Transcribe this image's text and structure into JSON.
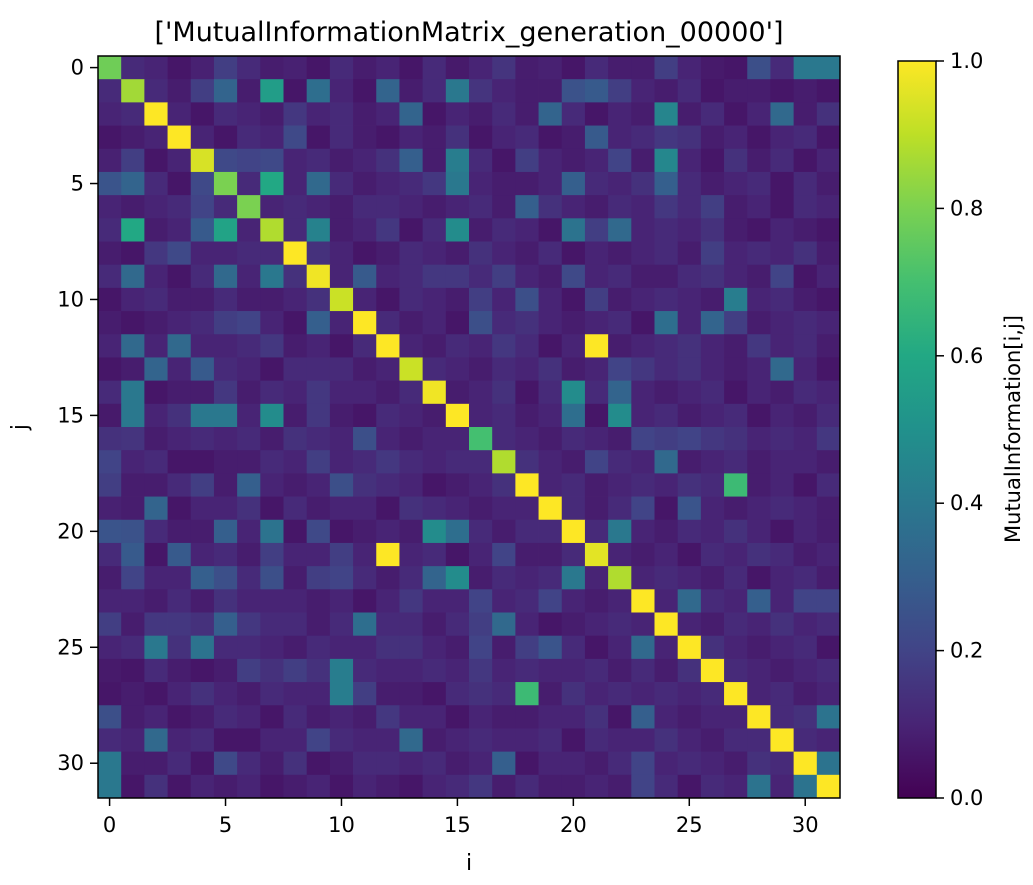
{
  "chart_data": {
    "type": "heatmap",
    "title": "['MutualInformationMatrix_generation_00000']",
    "xlabel": "i",
    "ylabel": "j",
    "colorbar_label": "MutualInformation[i,j]",
    "colormap": "viridis",
    "vmin": 0.0,
    "vmax": 1.0,
    "x_ticks": [
      0,
      5,
      10,
      15,
      20,
      25,
      30
    ],
    "y_ticks": [
      0,
      5,
      10,
      15,
      20,
      25,
      30
    ],
    "x_tick_labels": [
      "0",
      "5",
      "10",
      "15",
      "20",
      "25",
      "30"
    ],
    "y_tick_labels": [
      "0",
      "5",
      "10",
      "15",
      "20",
      "25",
      "30"
    ],
    "colorbar_ticks": [
      0.0,
      0.2,
      0.4,
      0.6,
      0.8,
      1.0
    ],
    "colorbar_tick_labels": [
      "0.0",
      "0.2",
      "0.4",
      "0.6",
      "0.8",
      "1.0"
    ],
    "size": 32,
    "grid": false,
    "legend": "none",
    "values_note": "Off-diagonal cells estimated; diagonal high (~0.85-1.0); notable symmetric peaks at (12,21)=1.0 and (18,27)=0.68",
    "matrix": [
      [
        0.78,
        0.12,
        0.1,
        0.06,
        0.09,
        0.18,
        0.12,
        0.08,
        0.09,
        0.06,
        0.12,
        0.08,
        0.1,
        0.06,
        0.12,
        0.07,
        0.1,
        0.15,
        0.08,
        0.09,
        0.06,
        0.12,
        0.08,
        0.08,
        0.18,
        0.1,
        0.07,
        0.06,
        0.24,
        0.12,
        0.4,
        0.4
      ],
      [
        0.12,
        0.86,
        0.12,
        0.08,
        0.18,
        0.32,
        0.08,
        0.55,
        0.06,
        0.36,
        0.1,
        0.06,
        0.32,
        0.08,
        0.12,
        0.4,
        0.15,
        0.1,
        0.08,
        0.08,
        0.25,
        0.28,
        0.18,
        0.1,
        0.08,
        0.12,
        0.06,
        0.08,
        0.08,
        0.06,
        0.08,
        0.06
      ],
      [
        0.1,
        0.12,
        1.0,
        0.1,
        0.06,
        0.12,
        0.1,
        0.08,
        0.16,
        0.1,
        0.12,
        0.08,
        0.1,
        0.32,
        0.06,
        0.1,
        0.08,
        0.12,
        0.08,
        0.32,
        0.12,
        0.06,
        0.1,
        0.08,
        0.45,
        0.08,
        0.12,
        0.06,
        0.1,
        0.34,
        0.08,
        0.14
      ],
      [
        0.06,
        0.08,
        0.1,
        1.0,
        0.1,
        0.06,
        0.12,
        0.1,
        0.22,
        0.06,
        0.12,
        0.08,
        0.06,
        0.1,
        0.08,
        0.14,
        0.06,
        0.1,
        0.12,
        0.06,
        0.08,
        0.28,
        0.1,
        0.12,
        0.16,
        0.14,
        0.08,
        0.1,
        0.06,
        0.1,
        0.12,
        0.06
      ],
      [
        0.09,
        0.18,
        0.06,
        0.1,
        0.94,
        0.22,
        0.2,
        0.22,
        0.1,
        0.12,
        0.08,
        0.1,
        0.14,
        0.3,
        0.08,
        0.42,
        0.12,
        0.06,
        0.18,
        0.1,
        0.08,
        0.1,
        0.2,
        0.08,
        0.46,
        0.1,
        0.06,
        0.14,
        0.08,
        0.12,
        0.06,
        0.1
      ],
      [
        0.26,
        0.32,
        0.12,
        0.06,
        0.22,
        0.8,
        0.12,
        0.6,
        0.1,
        0.34,
        0.12,
        0.08,
        0.1,
        0.12,
        0.16,
        0.4,
        0.1,
        0.08,
        0.08,
        0.1,
        0.3,
        0.12,
        0.1,
        0.14,
        0.3,
        0.12,
        0.08,
        0.1,
        0.12,
        0.06,
        0.12,
        0.08
      ],
      [
        0.1,
        0.08,
        0.1,
        0.12,
        0.2,
        0.12,
        0.8,
        0.1,
        0.12,
        0.1,
        0.08,
        0.12,
        0.12,
        0.1,
        0.08,
        0.1,
        0.12,
        0.08,
        0.3,
        0.14,
        0.1,
        0.08,
        0.12,
        0.1,
        0.16,
        0.12,
        0.18,
        0.08,
        0.1,
        0.06,
        0.12,
        0.1
      ],
      [
        0.12,
        0.6,
        0.08,
        0.1,
        0.28,
        0.58,
        0.1,
        0.88,
        0.12,
        0.44,
        0.08,
        0.1,
        0.16,
        0.06,
        0.12,
        0.48,
        0.08,
        0.12,
        0.1,
        0.06,
        0.38,
        0.18,
        0.34,
        0.1,
        0.12,
        0.1,
        0.14,
        0.08,
        0.06,
        0.1,
        0.08,
        0.06
      ],
      [
        0.08,
        0.06,
        0.16,
        0.22,
        0.1,
        0.1,
        0.12,
        0.12,
        1.0,
        0.14,
        0.1,
        0.06,
        0.08,
        0.12,
        0.1,
        0.08,
        0.14,
        0.1,
        0.08,
        0.12,
        0.06,
        0.1,
        0.08,
        0.1,
        0.12,
        0.08,
        0.18,
        0.1,
        0.12,
        0.1,
        0.14,
        0.08
      ],
      [
        0.12,
        0.34,
        0.1,
        0.06,
        0.12,
        0.34,
        0.1,
        0.4,
        0.14,
        0.98,
        0.1,
        0.28,
        0.1,
        0.12,
        0.16,
        0.16,
        0.12,
        0.18,
        0.1,
        0.08,
        0.22,
        0.1,
        0.12,
        0.08,
        0.08,
        0.12,
        0.14,
        0.1,
        0.08,
        0.2,
        0.06,
        0.1
      ],
      [
        0.06,
        0.1,
        0.12,
        0.08,
        0.08,
        0.12,
        0.08,
        0.08,
        0.1,
        0.14,
        0.92,
        0.1,
        0.06,
        0.12,
        0.1,
        0.08,
        0.18,
        0.1,
        0.24,
        0.1,
        0.06,
        0.18,
        0.08,
        0.1,
        0.12,
        0.1,
        0.08,
        0.42,
        0.1,
        0.12,
        0.08,
        0.06
      ],
      [
        0.08,
        0.06,
        0.08,
        0.1,
        0.12,
        0.18,
        0.2,
        0.1,
        0.06,
        0.3,
        0.1,
        1.0,
        0.12,
        0.08,
        0.1,
        0.06,
        0.24,
        0.12,
        0.14,
        0.1,
        0.08,
        0.1,
        0.12,
        0.06,
        0.36,
        0.1,
        0.32,
        0.18,
        0.08,
        0.1,
        0.12,
        0.1
      ],
      [
        0.1,
        0.34,
        0.1,
        0.34,
        0.1,
        0.1,
        0.12,
        0.16,
        0.08,
        0.1,
        0.06,
        0.12,
        1.0,
        0.1,
        0.08,
        0.12,
        0.1,
        0.16,
        0.12,
        0.06,
        0.1,
        1.0,
        0.08,
        0.1,
        0.12,
        0.14,
        0.1,
        0.08,
        0.16,
        0.1,
        0.12,
        0.08
      ],
      [
        0.06,
        0.08,
        0.32,
        0.1,
        0.28,
        0.12,
        0.1,
        0.06,
        0.12,
        0.12,
        0.12,
        0.08,
        0.1,
        0.92,
        0.12,
        0.1,
        0.08,
        0.12,
        0.1,
        0.14,
        0.08,
        0.1,
        0.2,
        0.16,
        0.12,
        0.14,
        0.1,
        0.08,
        0.1,
        0.34,
        0.1,
        0.06
      ],
      [
        0.12,
        0.4,
        0.06,
        0.08,
        0.08,
        0.16,
        0.08,
        0.12,
        0.1,
        0.16,
        0.1,
        0.1,
        0.08,
        0.12,
        0.98,
        0.08,
        0.1,
        0.14,
        0.06,
        0.12,
        0.48,
        0.12,
        0.32,
        0.1,
        0.08,
        0.1,
        0.12,
        0.06,
        0.1,
        0.08,
        0.12,
        0.1
      ],
      [
        0.07,
        0.4,
        0.1,
        0.14,
        0.4,
        0.4,
        0.1,
        0.48,
        0.08,
        0.16,
        0.08,
        0.06,
        0.12,
        0.1,
        0.08,
        1.0,
        0.1,
        0.12,
        0.08,
        0.1,
        0.36,
        0.06,
        0.48,
        0.1,
        0.12,
        0.08,
        0.1,
        0.12,
        0.06,
        0.1,
        0.08,
        0.12
      ],
      [
        0.14,
        0.15,
        0.08,
        0.1,
        0.12,
        0.1,
        0.12,
        0.08,
        0.14,
        0.12,
        0.1,
        0.24,
        0.1,
        0.08,
        0.1,
        0.1,
        0.7,
        0.12,
        0.1,
        0.08,
        0.12,
        0.1,
        0.08,
        0.2,
        0.18,
        0.2,
        0.16,
        0.14,
        0.1,
        0.12,
        0.1,
        0.16
      ],
      [
        0.2,
        0.1,
        0.12,
        0.06,
        0.06,
        0.08,
        0.08,
        0.12,
        0.1,
        0.18,
        0.1,
        0.12,
        0.16,
        0.12,
        0.1,
        0.12,
        0.12,
        0.88,
        0.14,
        0.1,
        0.08,
        0.2,
        0.12,
        0.1,
        0.34,
        0.08,
        0.1,
        0.12,
        0.08,
        0.1,
        0.1,
        0.08
      ],
      [
        0.18,
        0.08,
        0.08,
        0.12,
        0.18,
        0.08,
        0.3,
        0.1,
        0.08,
        0.1,
        0.24,
        0.14,
        0.12,
        0.1,
        0.06,
        0.08,
        0.1,
        0.14,
        1.0,
        0.1,
        0.12,
        0.08,
        0.1,
        0.12,
        0.1,
        0.14,
        0.12,
        0.68,
        0.08,
        0.1,
        0.06,
        0.12
      ],
      [
        0.09,
        0.08,
        0.32,
        0.06,
        0.1,
        0.1,
        0.14,
        0.06,
        0.12,
        0.08,
        0.1,
        0.1,
        0.06,
        0.14,
        0.12,
        0.1,
        0.08,
        0.1,
        0.1,
        1.0,
        0.12,
        0.08,
        0.12,
        0.2,
        0.06,
        0.26,
        0.1,
        0.08,
        0.1,
        0.12,
        0.1,
        0.08
      ],
      [
        0.26,
        0.25,
        0.12,
        0.08,
        0.08,
        0.3,
        0.1,
        0.38,
        0.06,
        0.22,
        0.06,
        0.08,
        0.1,
        0.08,
        0.48,
        0.36,
        0.12,
        0.08,
        0.12,
        0.12,
        1.0,
        0.12,
        0.4,
        0.1,
        0.08,
        0.12,
        0.1,
        0.14,
        0.1,
        0.06,
        0.1,
        0.08
      ],
      [
        0.12,
        0.28,
        0.06,
        0.28,
        0.1,
        0.12,
        0.08,
        0.18,
        0.1,
        0.1,
        0.18,
        0.1,
        1.0,
        0.1,
        0.12,
        0.06,
        0.1,
        0.2,
        0.08,
        0.08,
        0.12,
        0.96,
        0.1,
        0.08,
        0.1,
        0.06,
        0.12,
        0.1,
        0.14,
        0.12,
        0.08,
        0.1
      ],
      [
        0.08,
        0.2,
        0.1,
        0.1,
        0.3,
        0.24,
        0.12,
        0.24,
        0.08,
        0.18,
        0.2,
        0.12,
        0.08,
        0.12,
        0.32,
        0.48,
        0.08,
        0.12,
        0.1,
        0.12,
        0.4,
        0.1,
        0.88,
        0.1,
        0.12,
        0.1,
        0.08,
        0.12,
        0.06,
        0.1,
        0.12,
        0.08
      ],
      [
        0.1,
        0.1,
        0.08,
        0.12,
        0.08,
        0.14,
        0.1,
        0.1,
        0.1,
        0.08,
        0.1,
        0.06,
        0.1,
        0.16,
        0.1,
        0.1,
        0.2,
        0.1,
        0.12,
        0.2,
        0.1,
        0.08,
        0.1,
        1.0,
        0.1,
        0.34,
        0.12,
        0.1,
        0.3,
        0.1,
        0.2,
        0.2
      ],
      [
        0.18,
        0.08,
        0.16,
        0.16,
        0.14,
        0.3,
        0.16,
        0.12,
        0.12,
        0.08,
        0.12,
        0.36,
        0.12,
        0.12,
        0.08,
        0.12,
        0.18,
        0.34,
        0.1,
        0.06,
        0.08,
        0.1,
        0.12,
        0.1,
        1.0,
        0.1,
        0.08,
        0.12,
        0.1,
        0.14,
        0.1,
        0.12
      ],
      [
        0.1,
        0.12,
        0.4,
        0.14,
        0.38,
        0.12,
        0.12,
        0.1,
        0.08,
        0.12,
        0.1,
        0.1,
        0.14,
        0.14,
        0.1,
        0.08,
        0.2,
        0.08,
        0.18,
        0.26,
        0.12,
        0.06,
        0.1,
        0.34,
        0.1,
        1.0,
        0.14,
        0.1,
        0.08,
        0.1,
        0.12,
        0.06
      ],
      [
        0.07,
        0.06,
        0.12,
        0.08,
        0.06,
        0.08,
        0.18,
        0.14,
        0.18,
        0.14,
        0.42,
        0.12,
        0.1,
        0.1,
        0.12,
        0.1,
        0.16,
        0.1,
        0.12,
        0.1,
        0.1,
        0.12,
        0.08,
        0.12,
        0.08,
        0.14,
        1.0,
        0.12,
        0.1,
        0.08,
        0.1,
        0.12
      ],
      [
        0.06,
        0.08,
        0.06,
        0.1,
        0.14,
        0.1,
        0.08,
        0.12,
        0.1,
        0.1,
        0.42,
        0.18,
        0.08,
        0.08,
        0.06,
        0.12,
        0.14,
        0.12,
        0.68,
        0.08,
        0.14,
        0.1,
        0.12,
        0.1,
        0.12,
        0.1,
        0.12,
        1.0,
        0.1,
        0.12,
        0.08,
        0.1
      ],
      [
        0.24,
        0.08,
        0.1,
        0.06,
        0.08,
        0.12,
        0.1,
        0.06,
        0.12,
        0.08,
        0.1,
        0.08,
        0.16,
        0.1,
        0.1,
        0.06,
        0.1,
        0.08,
        0.08,
        0.1,
        0.1,
        0.14,
        0.06,
        0.3,
        0.1,
        0.08,
        0.1,
        0.1,
        1.0,
        0.12,
        0.14,
        0.38
      ],
      [
        0.12,
        0.1,
        0.34,
        0.1,
        0.12,
        0.06,
        0.06,
        0.1,
        0.1,
        0.2,
        0.12,
        0.1,
        0.1,
        0.34,
        0.08,
        0.1,
        0.12,
        0.1,
        0.1,
        0.12,
        0.06,
        0.12,
        0.1,
        0.1,
        0.14,
        0.1,
        0.08,
        0.12,
        0.12,
        1.0,
        0.12,
        0.1
      ],
      [
        0.4,
        0.08,
        0.08,
        0.12,
        0.06,
        0.22,
        0.12,
        0.08,
        0.14,
        0.06,
        0.08,
        0.12,
        0.12,
        0.1,
        0.12,
        0.08,
        0.1,
        0.3,
        0.06,
        0.1,
        0.1,
        0.08,
        0.12,
        0.2,
        0.1,
        0.12,
        0.1,
        0.08,
        0.14,
        0.12,
        1.0,
        0.38
      ],
      [
        0.4,
        0.06,
        0.14,
        0.06,
        0.1,
        0.08,
        0.1,
        0.06,
        0.08,
        0.1,
        0.06,
        0.1,
        0.08,
        0.06,
        0.1,
        0.12,
        0.16,
        0.08,
        0.12,
        0.08,
        0.08,
        0.1,
        0.08,
        0.2,
        0.12,
        0.06,
        0.12,
        0.1,
        0.38,
        0.1,
        0.38,
        1.0
      ]
    ]
  }
}
